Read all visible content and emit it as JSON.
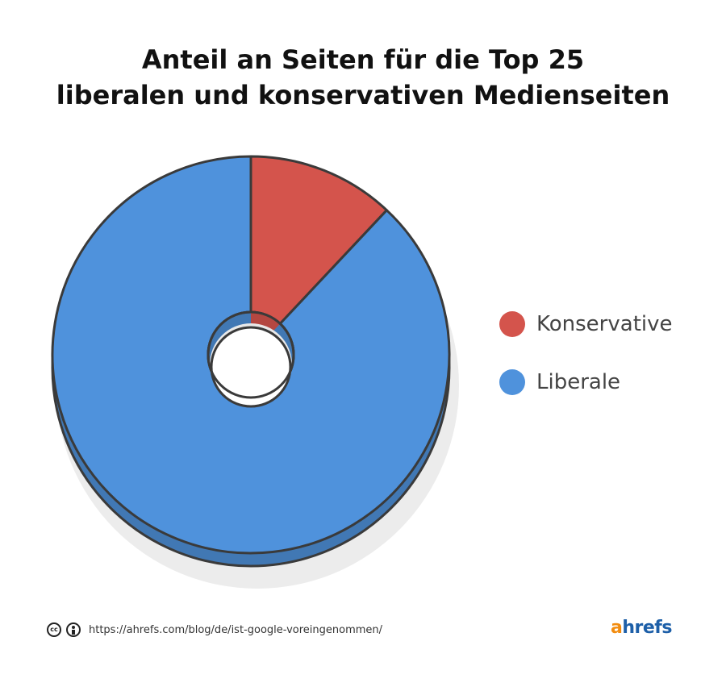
{
  "chart_data": {
    "type": "pie",
    "title_lines": [
      "Anteil an Seiten für die Top 25",
      "liberalen und konservativen Medienseiten"
    ],
    "categories": [
      "Konservative",
      "Liberale"
    ],
    "values": [
      12,
      88
    ],
    "colors": [
      "#d4544c",
      "#4f92dc"
    ],
    "donut": true,
    "legend_position": "right"
  },
  "footer": {
    "cc_label": "cc",
    "url": "https://ahrefs.com/blog/de/ist-google-voreingenommen/"
  },
  "brand": {
    "a": "a",
    "rest": "hrefs",
    "color_a": "#f28c0f",
    "color_rest": "#1d5fa8"
  }
}
